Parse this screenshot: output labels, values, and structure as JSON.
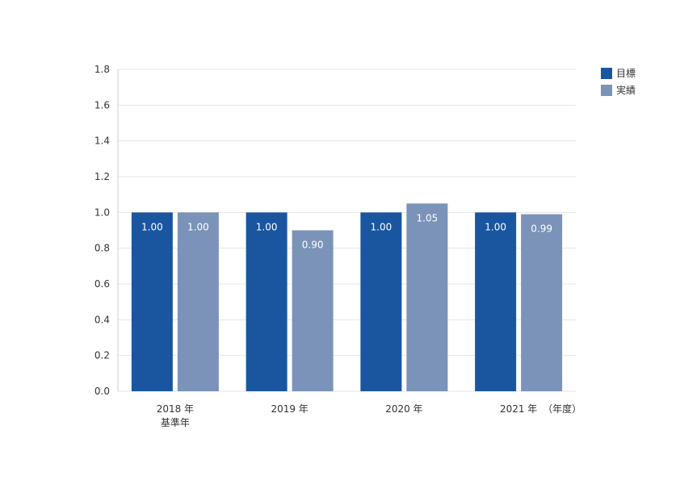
{
  "chart_data": {
    "type": "bar",
    "categories": [
      "2018 年",
      "2019 年",
      "2020 年",
      "2021 年"
    ],
    "category_sublabels": [
      "基準年",
      "",
      "",
      ""
    ],
    "x_unit_label": "（年度）",
    "series": [
      {
        "name": "目標",
        "values": [
          1.0,
          1.0,
          1.0,
          1.0
        ],
        "labels": [
          "1.00",
          "1.00",
          "1.00",
          "1.00"
        ],
        "color": "#1a56a0"
      },
      {
        "name": "実績",
        "values": [
          1.0,
          0.9,
          1.05,
          0.99
        ],
        "labels": [
          "1.00",
          "0.90",
          "1.05",
          "0.99"
        ],
        "color": "#7b93b9"
      }
    ],
    "yticks": [
      "0.0",
      "0.2",
      "0.4",
      "0.6",
      "0.8",
      "1.0",
      "1.2",
      "1.4",
      "1.6",
      "1.8"
    ],
    "ylim": [
      0,
      1.8
    ],
    "grid": true,
    "legend_position": "top-right"
  },
  "colors": {
    "grid": "#e6e6e6",
    "axis": "#cccccc"
  }
}
